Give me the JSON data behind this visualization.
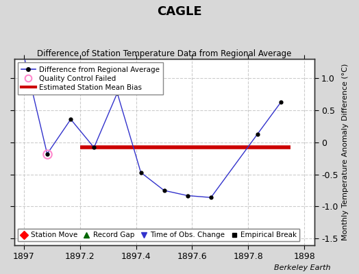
{
  "title": "CAGLE",
  "subtitle": "Difference of Station Temperature Data from Regional Average",
  "ylabel": "Monthly Temperature Anomaly Difference (°C)",
  "xlabel_ticks": [
    1897,
    1897.2,
    1897.4,
    1897.6,
    1897.8,
    1898
  ],
  "xlim": [
    1896.965,
    1898.035
  ],
  "ylim": [
    -1.6,
    1.3
  ],
  "yticks": [
    -1.5,
    -1.0,
    -0.5,
    0.0,
    0.5,
    1.0
  ],
  "data_x": [
    1897.0,
    1897.083,
    1897.167,
    1897.25,
    1897.333,
    1897.417,
    1897.5,
    1897.583,
    1897.667,
    1897.833,
    1897.917
  ],
  "data_y": [
    1.35,
    -0.18,
    0.36,
    -0.08,
    0.77,
    -0.47,
    -0.75,
    -0.83,
    -0.86,
    0.13,
    0.63
  ],
  "qc_x": [
    1897.083
  ],
  "qc_y": [
    -0.18
  ],
  "bias_x_start": 1897.2,
  "bias_x_end": 1897.95,
  "bias_y": -0.08,
  "line_color": "#3333cc",
  "dot_color": "#000000",
  "qc_marker_color": "#ff88cc",
  "bias_color": "#cc0000",
  "fig_bg_color": "#d8d8d8",
  "plot_bg_color": "#ffffff",
  "grid_color": "#cccccc",
  "footer": "Berkeley Earth",
  "legend1_items": [
    "Difference from Regional Average",
    "Quality Control Failed",
    "Estimated Station Mean Bias"
  ],
  "legend2_items": [
    "Station Move",
    "Record Gap",
    "Time of Obs. Change",
    "Empirical Break"
  ]
}
